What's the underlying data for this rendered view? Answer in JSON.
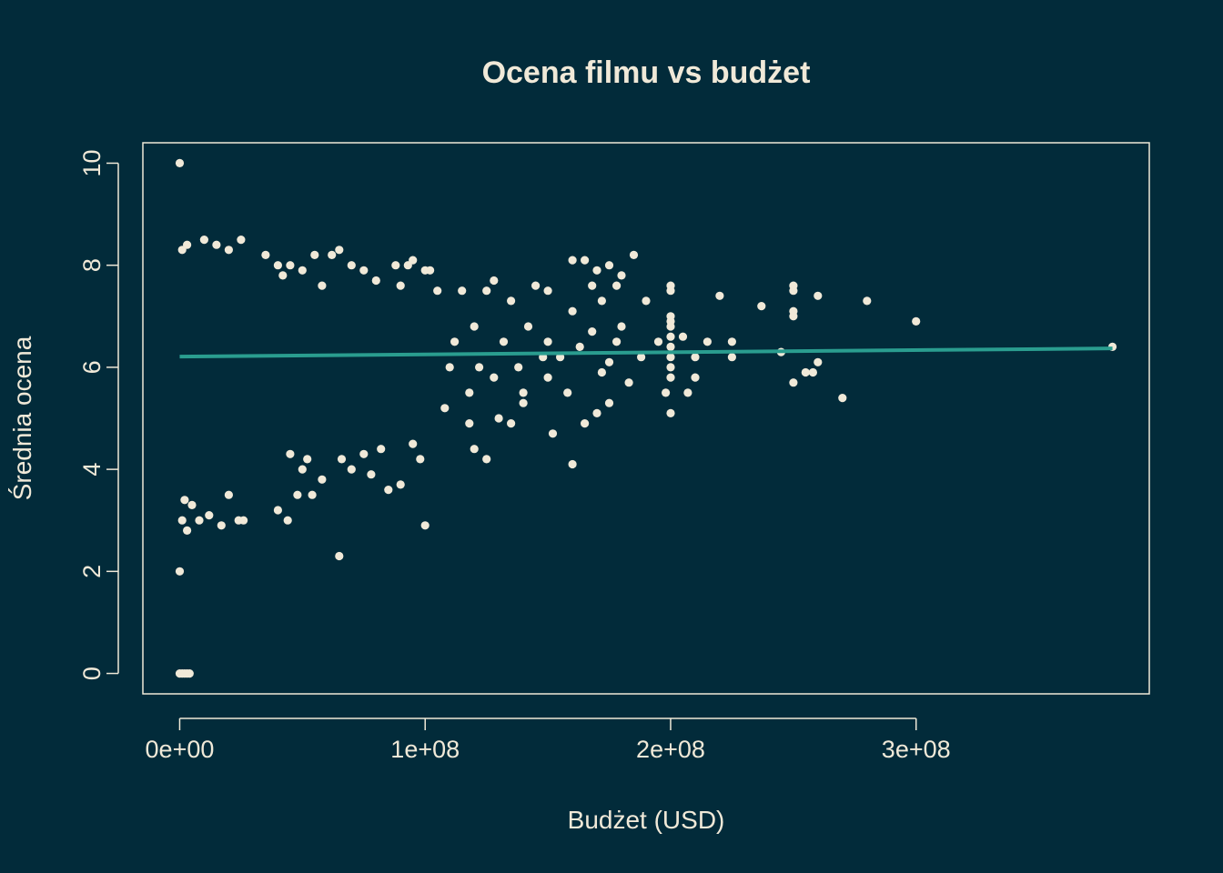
{
  "colors": {
    "background": "#022b3a",
    "foreground": "#f0e9d8",
    "points": "#f0e9d8",
    "trend": "#2a9d8f"
  },
  "chart_data": {
    "type": "scatter",
    "title": "Ocena filmu vs budżet",
    "xlabel": "Budżet (USD)",
    "ylabel": "Średnia ocena",
    "xlim": [
      -15000000,
      395000000
    ],
    "ylim": [
      -0.4,
      10.4
    ],
    "x_ticks": [
      0,
      100000000,
      200000000,
      300000000
    ],
    "x_tick_labels": [
      "0e+00",
      "1e+08",
      "2e+08",
      "3e+08"
    ],
    "y_ticks": [
      0,
      2,
      4,
      6,
      8,
      10
    ],
    "y_tick_labels": [
      "0",
      "2",
      "4",
      "6",
      "8",
      "10"
    ],
    "grid": false,
    "legend": "none",
    "trend_line": {
      "x": [
        0,
        380000000
      ],
      "y": [
        6.21,
        6.37
      ]
    },
    "series": [
      {
        "points": [
          [
            0,
            10
          ],
          [
            0,
            2
          ],
          [
            0,
            0
          ],
          [
            1000000,
            0
          ],
          [
            2000000,
            0
          ],
          [
            3000000,
            0
          ],
          [
            4000000,
            0
          ],
          [
            1000000,
            8.3
          ],
          [
            3000000,
            8.4
          ],
          [
            10000000,
            8.5
          ],
          [
            25000000,
            8.5
          ],
          [
            15000000,
            8.4
          ],
          [
            20000000,
            8.3
          ],
          [
            35000000,
            8.2
          ],
          [
            1000000,
            3
          ],
          [
            2000000,
            3.4
          ],
          [
            3000000,
            2.8
          ],
          [
            5000000,
            3.3
          ],
          [
            8000000,
            3
          ],
          [
            12000000,
            3.1
          ],
          [
            17000000,
            2.9
          ],
          [
            24000000,
            3
          ],
          [
            26000000,
            3
          ],
          [
            20000000,
            3.5
          ],
          [
            40000000,
            8
          ],
          [
            42000000,
            7.8
          ],
          [
            45000000,
            8
          ],
          [
            50000000,
            7.9
          ],
          [
            55000000,
            8.2
          ],
          [
            58000000,
            7.6
          ],
          [
            62000000,
            8.2
          ],
          [
            65000000,
            8.3
          ],
          [
            70000000,
            8
          ],
          [
            75000000,
            7.9
          ],
          [
            80000000,
            7.7
          ],
          [
            88000000,
            8
          ],
          [
            90000000,
            7.6
          ],
          [
            93000000,
            8
          ],
          [
            95000000,
            8.1
          ],
          [
            100000000,
            7.9
          ],
          [
            102000000,
            7.9
          ],
          [
            45000000,
            4.3
          ],
          [
            50000000,
            4
          ],
          [
            48000000,
            3.5
          ],
          [
            52000000,
            4.2
          ],
          [
            58000000,
            3.8
          ],
          [
            66000000,
            4.2
          ],
          [
            70000000,
            4
          ],
          [
            75000000,
            4.3
          ],
          [
            78000000,
            3.9
          ],
          [
            82000000,
            4.4
          ],
          [
            85000000,
            3.6
          ],
          [
            90000000,
            3.7
          ],
          [
            95000000,
            4.5
          ],
          [
            98000000,
            4.2
          ],
          [
            40000000,
            3.2
          ],
          [
            44000000,
            3
          ],
          [
            54000000,
            3.5
          ],
          [
            65000000,
            2.3
          ],
          [
            100000000,
            2.9
          ],
          [
            105000000,
            7.5
          ],
          [
            110000000,
            6
          ],
          [
            112000000,
            6.5
          ],
          [
            115000000,
            7.5
          ],
          [
            118000000,
            5.5
          ],
          [
            120000000,
            6.8
          ],
          [
            122000000,
            6
          ],
          [
            125000000,
            7.5
          ],
          [
            128000000,
            7.7
          ],
          [
            130000000,
            5
          ],
          [
            132000000,
            6.5
          ],
          [
            135000000,
            7.3
          ],
          [
            138000000,
            6
          ],
          [
            140000000,
            5.3
          ],
          [
            142000000,
            6.8
          ],
          [
            145000000,
            7.6
          ],
          [
            148000000,
            6.2
          ],
          [
            150000000,
            7.5
          ],
          [
            150000000,
            6.5
          ],
          [
            150000000,
            5.8
          ],
          [
            152000000,
            4.7
          ],
          [
            155000000,
            6.2
          ],
          [
            158000000,
            5.5
          ],
          [
            120000000,
            4.4
          ],
          [
            125000000,
            4.2
          ],
          [
            135000000,
            4.9
          ],
          [
            140000000,
            5.5
          ],
          [
            118000000,
            4.9
          ],
          [
            108000000,
            5.2
          ],
          [
            128000000,
            5.8
          ],
          [
            160000000,
            8.1
          ],
          [
            165000000,
            8.1
          ],
          [
            168000000,
            7.6
          ],
          [
            170000000,
            7.9
          ],
          [
            172000000,
            7.3
          ],
          [
            175000000,
            8
          ],
          [
            178000000,
            7.6
          ],
          [
            180000000,
            7.8
          ],
          [
            185000000,
            8.2
          ],
          [
            190000000,
            7.3
          ],
          [
            160000000,
            7.1
          ],
          [
            163000000,
            6.4
          ],
          [
            168000000,
            6.7
          ],
          [
            172000000,
            5.9
          ],
          [
            175000000,
            6.1
          ],
          [
            178000000,
            6.5
          ],
          [
            180000000,
            6.8
          ],
          [
            183000000,
            5.7
          ],
          [
            188000000,
            6.2
          ],
          [
            160000000,
            4.1
          ],
          [
            165000000,
            4.9
          ],
          [
            170000000,
            5.1
          ],
          [
            175000000,
            5.3
          ],
          [
            195000000,
            6.5
          ],
          [
            198000000,
            5.5
          ],
          [
            200000000,
            7.6
          ],
          [
            200000000,
            7.5
          ],
          [
            200000000,
            7
          ],
          [
            200000000,
            6.9
          ],
          [
            200000000,
            6.8
          ],
          [
            200000000,
            6.6
          ],
          [
            200000000,
            6.4
          ],
          [
            200000000,
            6.2
          ],
          [
            200000000,
            6
          ],
          [
            200000000,
            5.8
          ],
          [
            200000000,
            5.1
          ],
          [
            205000000,
            6.6
          ],
          [
            207000000,
            5.5
          ],
          [
            210000000,
            5.8
          ],
          [
            210000000,
            6.2
          ],
          [
            215000000,
            6.5
          ],
          [
            220000000,
            7.4
          ],
          [
            225000000,
            6.5
          ],
          [
            225000000,
            6.2
          ],
          [
            237000000,
            7.2
          ],
          [
            245000000,
            6.3
          ],
          [
            250000000,
            7.6
          ],
          [
            250000000,
            7.5
          ],
          [
            250000000,
            7.1
          ],
          [
            250000000,
            7
          ],
          [
            250000000,
            5.7
          ],
          [
            255000000,
            5.9
          ],
          [
            258000000,
            5.9
          ],
          [
            260000000,
            6.1
          ],
          [
            260000000,
            7.4
          ],
          [
            270000000,
            5.4
          ],
          [
            280000000,
            7.3
          ],
          [
            300000000,
            6.9
          ],
          [
            380000000,
            6.4
          ]
        ]
      }
    ]
  }
}
